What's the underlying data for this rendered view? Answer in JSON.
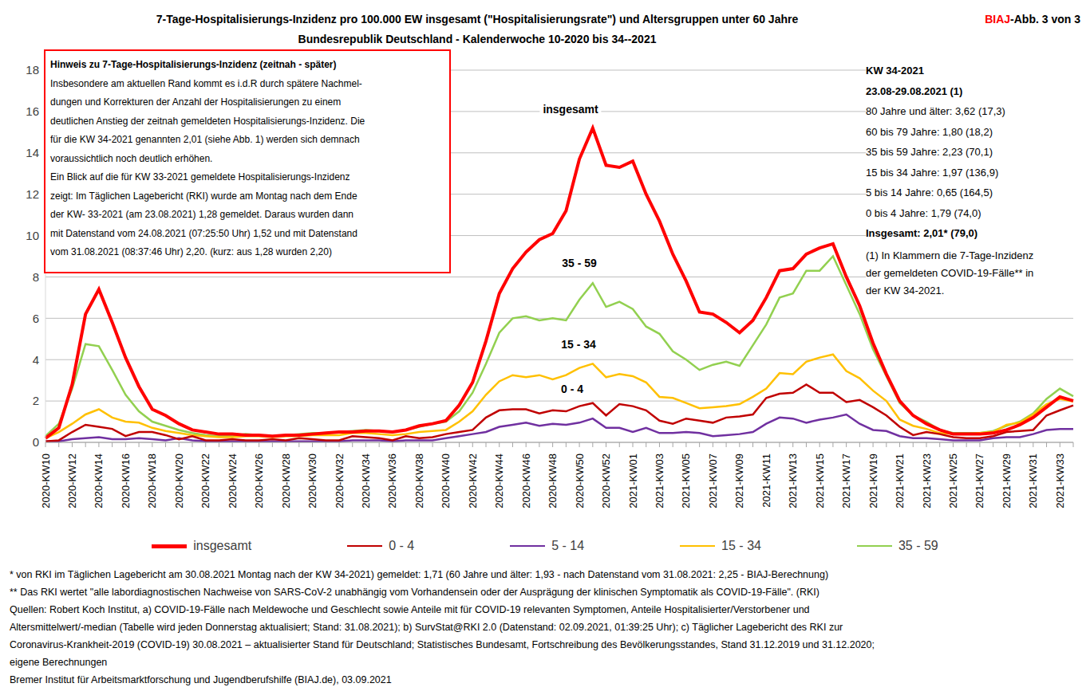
{
  "chart_data": {
    "type": "line",
    "title": "7-Tage-Hospitalisierungs-Inzidenz pro 100.000 EW insgesamt (\"Hospitalisierungsrate\") und Altersgruppen unter 60 Jahre",
    "subtitle": "Bundesrepublik Deutschland - Kalenderwoche 10-2020 bis 34--2021",
    "corner_label": "BIAJ-Abb. 3 von 3",
    "categories": [
      "2020-KW10",
      null,
      "2020-KW12",
      null,
      "2020-KW14",
      null,
      "2020-KW16",
      null,
      "2020-KW18",
      null,
      "2020-KW20",
      null,
      "2020-KW22",
      null,
      "2020-KW24",
      null,
      "2020-KW26",
      null,
      "2020-KW28",
      null,
      "2020-KW30",
      null,
      "2020-KW32",
      null,
      "2020-KW34",
      null,
      "2020-KW36",
      null,
      "2020-KW38",
      null,
      "2020-KW40",
      null,
      "2020-KW42",
      null,
      "2020-KW44",
      null,
      "2020-KW46",
      null,
      "2020-KW48",
      null,
      "2020-KW50",
      null,
      "2020-KW52",
      null,
      "2021-KW01",
      null,
      "2021-KW03",
      null,
      "2021-KW05",
      null,
      "2021-KW07",
      null,
      "2021-KW09",
      null,
      "2021-KW11",
      null,
      "2021-KW13",
      null,
      "2021-KW15",
      null,
      "2021-KW17",
      null,
      "2021-KW19",
      null,
      "2021-KW21",
      null,
      "2021-KW23",
      null,
      "2021-KW25",
      null,
      "2021-KW27",
      null,
      "2021-KW29",
      null,
      "2021-KW31",
      null,
      "2021-KW33",
      null
    ],
    "series": [
      {
        "name": "insgesamt",
        "color": "#ff0000",
        "values": [
          0.2,
          0.7,
          2.8,
          6.2,
          7.4,
          5.8,
          4.1,
          2.7,
          1.6,
          1.3,
          0.9,
          0.6,
          0.5,
          0.4,
          0.4,
          0.35,
          0.35,
          0.3,
          0.35,
          0.35,
          0.4,
          0.45,
          0.5,
          0.5,
          0.55,
          0.55,
          0.5,
          0.6,
          0.8,
          0.9,
          1.05,
          1.8,
          2.9,
          4.9,
          7.2,
          8.4,
          9.2,
          9.8,
          10.1,
          11.2,
          13.7,
          15.2,
          13.4,
          13.3,
          13.6,
          12.0,
          10.7,
          9.1,
          7.8,
          6.3,
          6.2,
          5.8,
          5.3,
          5.9,
          7.0,
          8.3,
          8.4,
          9.1,
          9.4,
          9.6,
          8.0,
          6.6,
          4.8,
          3.3,
          2.0,
          1.3,
          0.9,
          0.6,
          0.4,
          0.4,
          0.4,
          0.45,
          0.6,
          0.85,
          1.2,
          1.7,
          2.2,
          2.01
        ]
      },
      {
        "name": "0 - 4",
        "color": "#c00000",
        "values": [
          0.05,
          0.1,
          0.5,
          0.85,
          0.75,
          0.65,
          0.3,
          0.5,
          0.5,
          0.35,
          0.15,
          0.3,
          0.1,
          0.1,
          0.15,
          0.1,
          0.1,
          0.15,
          0.1,
          0.2,
          0.15,
          0.1,
          0.1,
          0.3,
          0.25,
          0.2,
          0.1,
          0.3,
          0.2,
          0.25,
          0.4,
          0.5,
          0.6,
          1.2,
          1.55,
          1.6,
          1.6,
          1.4,
          1.55,
          1.5,
          1.75,
          1.9,
          1.3,
          1.85,
          1.75,
          1.55,
          1.05,
          0.9,
          1.15,
          1.05,
          0.95,
          1.2,
          1.25,
          1.35,
          2.15,
          2.35,
          2.4,
          2.8,
          2.4,
          2.4,
          1.95,
          2.05,
          1.7,
          1.3,
          0.75,
          0.35,
          0.5,
          0.4,
          0.25,
          0.2,
          0.2,
          0.3,
          0.5,
          0.55,
          0.6,
          1.3,
          1.55,
          1.79
        ]
      },
      {
        "name": "5 - 14",
        "color": "#7030a0",
        "values": [
          0.05,
          0.05,
          0.15,
          0.2,
          0.25,
          0.15,
          0.15,
          0.2,
          0.15,
          0.1,
          0.2,
          0.1,
          0.05,
          0.05,
          0.05,
          0.05,
          0.05,
          0.05,
          0.05,
          0.05,
          0.05,
          0.05,
          0.05,
          0.1,
          0.1,
          0.1,
          0.05,
          0.1,
          0.1,
          0.1,
          0.2,
          0.3,
          0.4,
          0.5,
          0.75,
          0.85,
          0.95,
          0.8,
          0.9,
          0.85,
          0.95,
          1.15,
          0.7,
          0.7,
          0.5,
          0.7,
          0.45,
          0.45,
          0.5,
          0.45,
          0.3,
          0.35,
          0.4,
          0.5,
          0.9,
          1.2,
          1.15,
          0.95,
          1.1,
          1.2,
          1.35,
          0.9,
          0.6,
          0.55,
          0.3,
          0.2,
          0.2,
          0.15,
          0.1,
          0.1,
          0.1,
          0.2,
          0.25,
          0.25,
          0.4,
          0.6,
          0.65,
          0.65
        ]
      },
      {
        "name": "15 - 34",
        "color": "#ffc000",
        "values": [
          0.2,
          0.5,
          0.9,
          1.35,
          1.6,
          1.2,
          1.0,
          0.95,
          0.7,
          0.55,
          0.45,
          0.35,
          0.3,
          0.25,
          0.25,
          0.3,
          0.3,
          0.25,
          0.3,
          0.3,
          0.35,
          0.35,
          0.35,
          0.45,
          0.45,
          0.4,
          0.35,
          0.4,
          0.5,
          0.55,
          0.6,
          1.0,
          1.5,
          2.3,
          2.95,
          3.25,
          3.15,
          3.25,
          3.05,
          3.25,
          3.6,
          3.8,
          3.15,
          3.3,
          3.2,
          2.9,
          2.2,
          2.15,
          1.9,
          1.65,
          1.7,
          1.75,
          1.85,
          2.2,
          2.6,
          3.35,
          3.3,
          3.9,
          4.1,
          4.25,
          3.45,
          3.1,
          2.5,
          2.0,
          1.1,
          0.8,
          0.65,
          0.45,
          0.4,
          0.4,
          0.45,
          0.5,
          0.85,
          0.95,
          1.35,
          1.85,
          2.1,
          1.97
        ]
      },
      {
        "name": "35 - 59",
        "color": "#92d050",
        "values": [
          0.3,
          0.9,
          2.6,
          4.75,
          4.65,
          3.5,
          2.3,
          1.5,
          1.0,
          0.8,
          0.6,
          0.45,
          0.35,
          0.3,
          0.3,
          0.4,
          0.35,
          0.3,
          0.35,
          0.4,
          0.45,
          0.45,
          0.5,
          0.55,
          0.6,
          0.55,
          0.5,
          0.6,
          0.75,
          0.9,
          1.0,
          1.5,
          2.4,
          3.8,
          5.3,
          6.0,
          6.1,
          5.9,
          6.0,
          5.9,
          6.9,
          7.7,
          6.55,
          6.8,
          6.45,
          5.6,
          5.25,
          4.4,
          4.0,
          3.5,
          3.75,
          3.9,
          3.7,
          4.7,
          5.7,
          7.0,
          7.2,
          8.3,
          8.3,
          9.0,
          7.6,
          6.2,
          4.5,
          3.2,
          1.9,
          1.3,
          1.0,
          0.6,
          0.45,
          0.45,
          0.45,
          0.55,
          0.8,
          1.0,
          1.4,
          2.1,
          2.6,
          2.23
        ]
      }
    ],
    "ylim": [
      0,
      18
    ],
    "yticks": [
      0,
      2,
      4,
      6,
      8,
      10,
      12,
      14,
      16,
      18
    ],
    "grid": true,
    "legend": "bottom",
    "line_labels": [
      "insgesamt",
      "35 - 59",
      "15 - 34",
      "0 - 4"
    ],
    "note_box": [
      "Hinweis zu 7-Tage-Hospitalisierungs-Inzidenz (zeitnah - später)",
      "Insbesondere am aktuellen Rand kommt es i.d.R durch spätere Nachmel-",
      "dungen und Korrekturen der Anzahl der Hospitalisierungen zu einem",
      "deutlichen Anstieg der zeitnah gemeldeten Hospitalisierungs-Inzidenz. Die",
      "für die KW 34-2021 genannten 2,01 (siehe Abb. 1) werden sich demnach",
      "voraussichtlich noch deutlich erhöhen.",
      "Ein Blick auf die für KW 33-2021 gemeldete Hospitalisierungs-Inzidenz",
      "zeigt: Im Täglichen Lagebericht (RKI) wurde am Montag nach dem Ende",
      "der KW- 33-2021 (am 23.08.2021) 1,28 gemeldet. Daraus wurden dann",
      "mit Datenstand vom 24.08.2021 (07:25:50 Uhr) 1,52 und mit Datenstand",
      "vom 31.08.2021 (08:37:46 Uhr) 2,20. (kurz: aus 1,28 wurden 2,20)"
    ],
    "side_panel": {
      "heading": [
        "KW 34-2021",
        "23.08-29.08.2021 (1)"
      ],
      "lines": [
        "80 Jahre und älter: 3,62 (17,3)",
        "60 bis 79 Jahre: 1,80 (18,2)",
        "35 bis 59 Jahre: 2,23 (70,1)",
        "15 bis 34 Jahre: 1,97 (136,9)",
        "5 bis 14 Jahre: 0,65 (164,5)",
        "0 bis 4 Jahre: 1,79 (74,0)"
      ],
      "total": "Insgesamt: 2,01* (79,0)",
      "note": [
        "(1) In Klammern die 7-Tage-Inzidenz",
        "der gemeldeten COVID-19-Fälle** in",
        "der KW 34-2021."
      ]
    },
    "footnotes": [
      "* von RKI im Täglichen Lagebericht am 30.08.2021 Montag nach der KW 34-2021) gemeldet: 1,71 (60 Jahre und älter: 1,93 - nach Datenstand vom 31.08.2021: 2,25 - BIAJ-Berechnung)",
      "** Das RKI wertet \"alle labordiagnostischen Nachweise von SARS-CoV-2 unabhängig vom Vorhandensein oder der Ausprägung der klinischen Symptomatik als COVID-19-Fälle\". (RKI)",
      "Quellen: Robert Koch Institut, a) COVID-19-Fälle nach Meldewoche und Geschlecht sowie Anteile mit für COVID-19 relevanten Symptomen, Anteile Hospitalisierter/Verstorbener und",
      "Altersmittelwert/-median (Tabelle wird jeden Donnerstag aktualisiert; Stand: 31.08.2021); b) SurvStat@RKI 2.0 (Datenstand: 02.09.2021, 01:39:25 Uhr); c) Täglicher Lagebericht des RKI zur",
      "Coronavirus-Krankheit-2019 (COVID-19)  30.08.2021 – aktualisierter Stand für Deutschland; Statistisches Bundesamt, Fortschreibung des Bevölkerungsstandes, Stand 31.12.2019 und 31.12.2020;",
      "eigene Berechnungen",
      "Bremer Institut für Arbeitsmarktforschung und Jugendberufshilfe (BIAJ.de), 03.09.2021"
    ]
  }
}
